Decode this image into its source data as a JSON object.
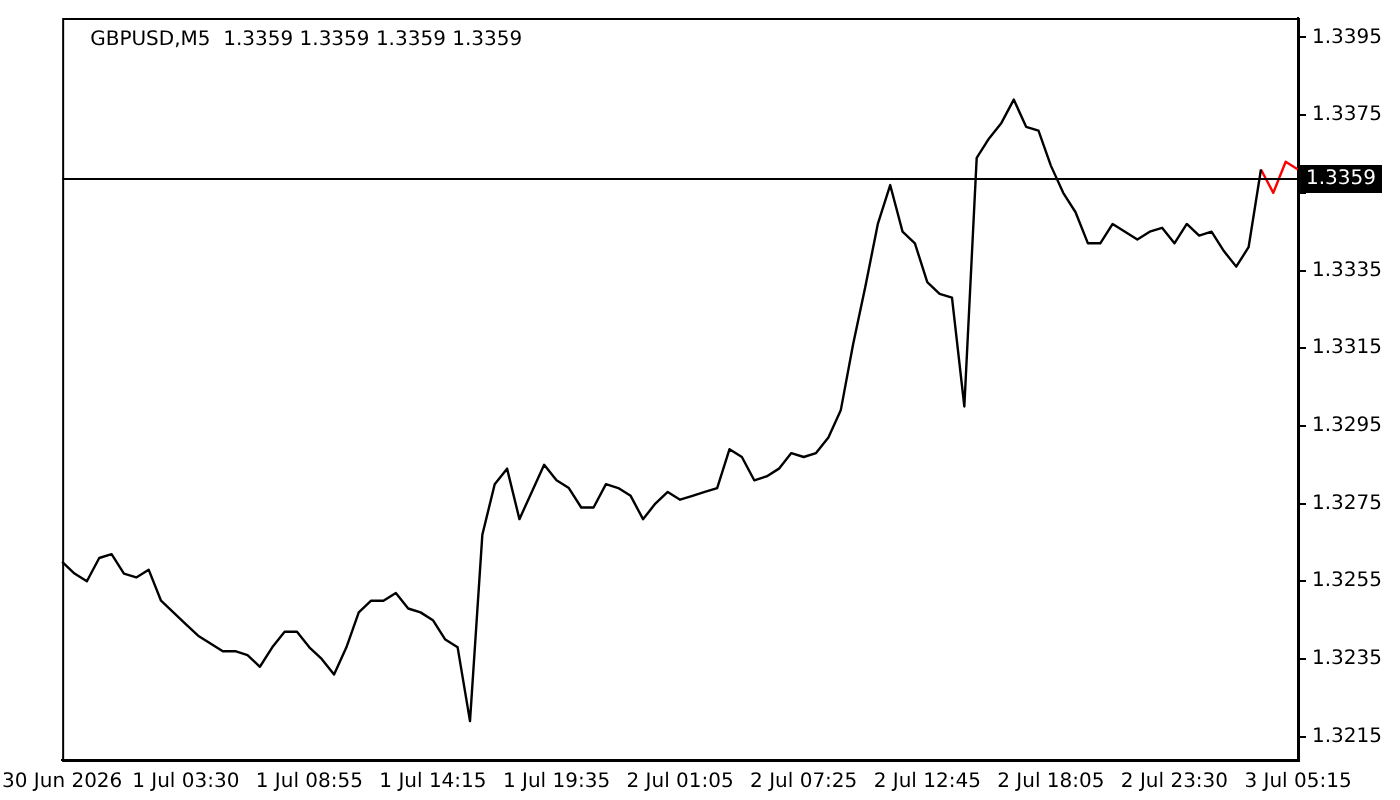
{
  "chart_data": {
    "type": "line",
    "title": "GBPUSD,M5  1.3359 1.3359 1.3359 1.3359",
    "categories": [
      "30 Jun 2026",
      null,
      null,
      null,
      null,
      null,
      null,
      null,
      null,
      null,
      "1 Jul 03:30",
      null,
      null,
      null,
      null,
      null,
      null,
      null,
      null,
      null,
      "1 Jul 08:55",
      null,
      null,
      null,
      null,
      null,
      null,
      null,
      null,
      null,
      "1 Jul 14:15",
      null,
      null,
      null,
      null,
      null,
      null,
      null,
      null,
      null,
      "1 Jul 19:35",
      null,
      null,
      null,
      null,
      null,
      null,
      null,
      null,
      null,
      "2 Jul 01:05",
      null,
      null,
      null,
      null,
      null,
      null,
      null,
      null,
      null,
      "2 Jul 07:25",
      null,
      null,
      null,
      null,
      null,
      null,
      null,
      null,
      null,
      "2 Jul 12:45",
      null,
      null,
      null,
      null,
      null,
      null,
      null,
      null,
      null,
      "2 Jul 18:05",
      null,
      null,
      null,
      null,
      null,
      null,
      null,
      null,
      null,
      "2 Jul 23:30",
      null,
      null,
      null,
      null,
      null,
      null,
      null,
      null,
      null,
      "3 Jul 05:15"
    ],
    "series": [
      {
        "color": "#000000",
        "values": [
          1.326,
          1.3257,
          1.3255,
          1.3261,
          1.3262,
          1.3257,
          1.3256,
          1.3258,
          1.325,
          1.3247,
          1.3244,
          1.3241,
          1.3239,
          1.3237,
          1.3237,
          1.3236,
          1.3233,
          1.3238,
          1.3242,
          1.3242,
          1.3238,
          1.3235,
          1.3231,
          1.3238,
          1.3247,
          1.325,
          1.325,
          1.3252,
          1.3248,
          1.3247,
          1.3245,
          1.324,
          1.3238,
          1.3219,
          1.3267,
          1.328,
          1.3284,
          1.3271,
          1.3278,
          1.3285,
          1.3281,
          1.3279,
          1.3274,
          1.3274,
          1.328,
          1.3279,
          1.3277,
          1.3271,
          1.3275,
          1.3278,
          1.3276,
          1.3277,
          1.3278,
          1.3279,
          1.3289,
          1.3287,
          1.3281,
          1.3282,
          1.3284,
          1.3288,
          1.3287,
          1.3288,
          1.3292,
          1.3299,
          1.3316,
          1.3331,
          1.3347,
          1.3357,
          1.3345,
          1.3342,
          1.3332,
          1.3329,
          1.3328,
          1.33,
          1.3364,
          1.3369,
          1.3373,
          1.3379,
          1.3372,
          1.3371,
          1.3362,
          1.3355,
          1.335,
          1.3342,
          1.3342,
          1.3347,
          1.3345,
          1.3343,
          1.3345,
          1.3346,
          1.3342,
          1.3347,
          1.3344,
          1.3345,
          1.334,
          1.3336,
          1.3341,
          1.3361,
          null,
          null,
          null
        ]
      },
      {
        "color": "#ff0000",
        "values": [
          null,
          null,
          null,
          null,
          null,
          null,
          null,
          null,
          null,
          null,
          null,
          null,
          null,
          null,
          null,
          null,
          null,
          null,
          null,
          null,
          null,
          null,
          null,
          null,
          null,
          null,
          null,
          null,
          null,
          null,
          null,
          null,
          null,
          null,
          null,
          null,
          null,
          null,
          null,
          null,
          null,
          null,
          null,
          null,
          null,
          null,
          null,
          null,
          null,
          null,
          null,
          null,
          null,
          null,
          null,
          null,
          null,
          null,
          null,
          null,
          null,
          null,
          null,
          null,
          null,
          null,
          null,
          null,
          null,
          null,
          null,
          null,
          null,
          null,
          null,
          null,
          null,
          null,
          null,
          null,
          null,
          null,
          null,
          null,
          null,
          null,
          null,
          null,
          null,
          null,
          null,
          null,
          null,
          null,
          null,
          null,
          null,
          1.3361,
          1.3355,
          1.3363,
          1.3361
        ]
      }
    ],
    "ylim": [
      1.3209,
      1.34
    ],
    "yticks": [
      1.3215,
      1.3235,
      1.3255,
      1.3275,
      1.3295,
      1.3315,
      1.3335,
      {
        "value": 1.3355,
        "label": null
      },
      1.3375,
      1.3395
    ],
    "ref_lines": [
      {
        "axis": "y",
        "value": 1.3359,
        "label": "1.3359",
        "color": "#000000"
      }
    ],
    "grid": false,
    "legend": false,
    "marker": "none",
    "line_style": "solid"
  }
}
